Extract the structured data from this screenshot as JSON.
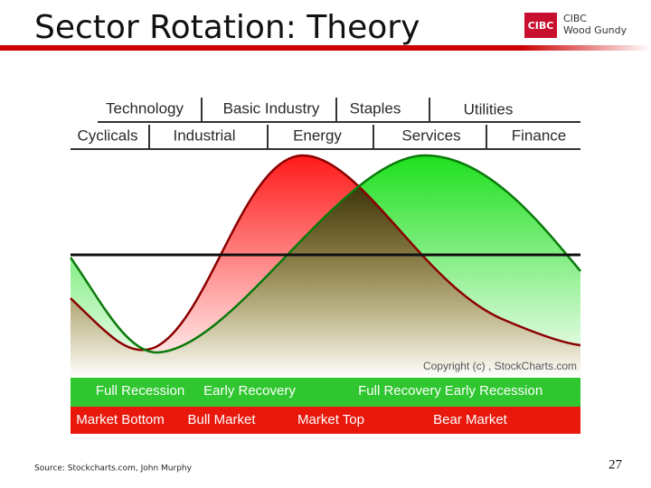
{
  "header": {
    "title": "Sector Rotation: Theory",
    "logo": {
      "mark": "CIBC",
      "line1": "CIBC",
      "line2": "Wood Gundy"
    }
  },
  "diagram": {
    "sectors_top": [
      "Technology",
      "Basic Industry",
      "Staples",
      "Utilities"
    ],
    "sectors_bottom": [
      "Cyclicals",
      "Industrial",
      "Energy",
      "Services",
      "Finance"
    ],
    "copyright": "Copyright (c) , StockCharts.com",
    "economy_phases": [
      "Full Recession",
      "Early Recovery",
      "Full Recovery",
      "Early Recession"
    ],
    "market_phases": [
      "Market Bottom",
      "Bull Market",
      "Market Top",
      "Bear Market"
    ]
  },
  "footer": {
    "source": "Source: Stockcharts.com, John Murphy",
    "page_number": "27"
  }
}
